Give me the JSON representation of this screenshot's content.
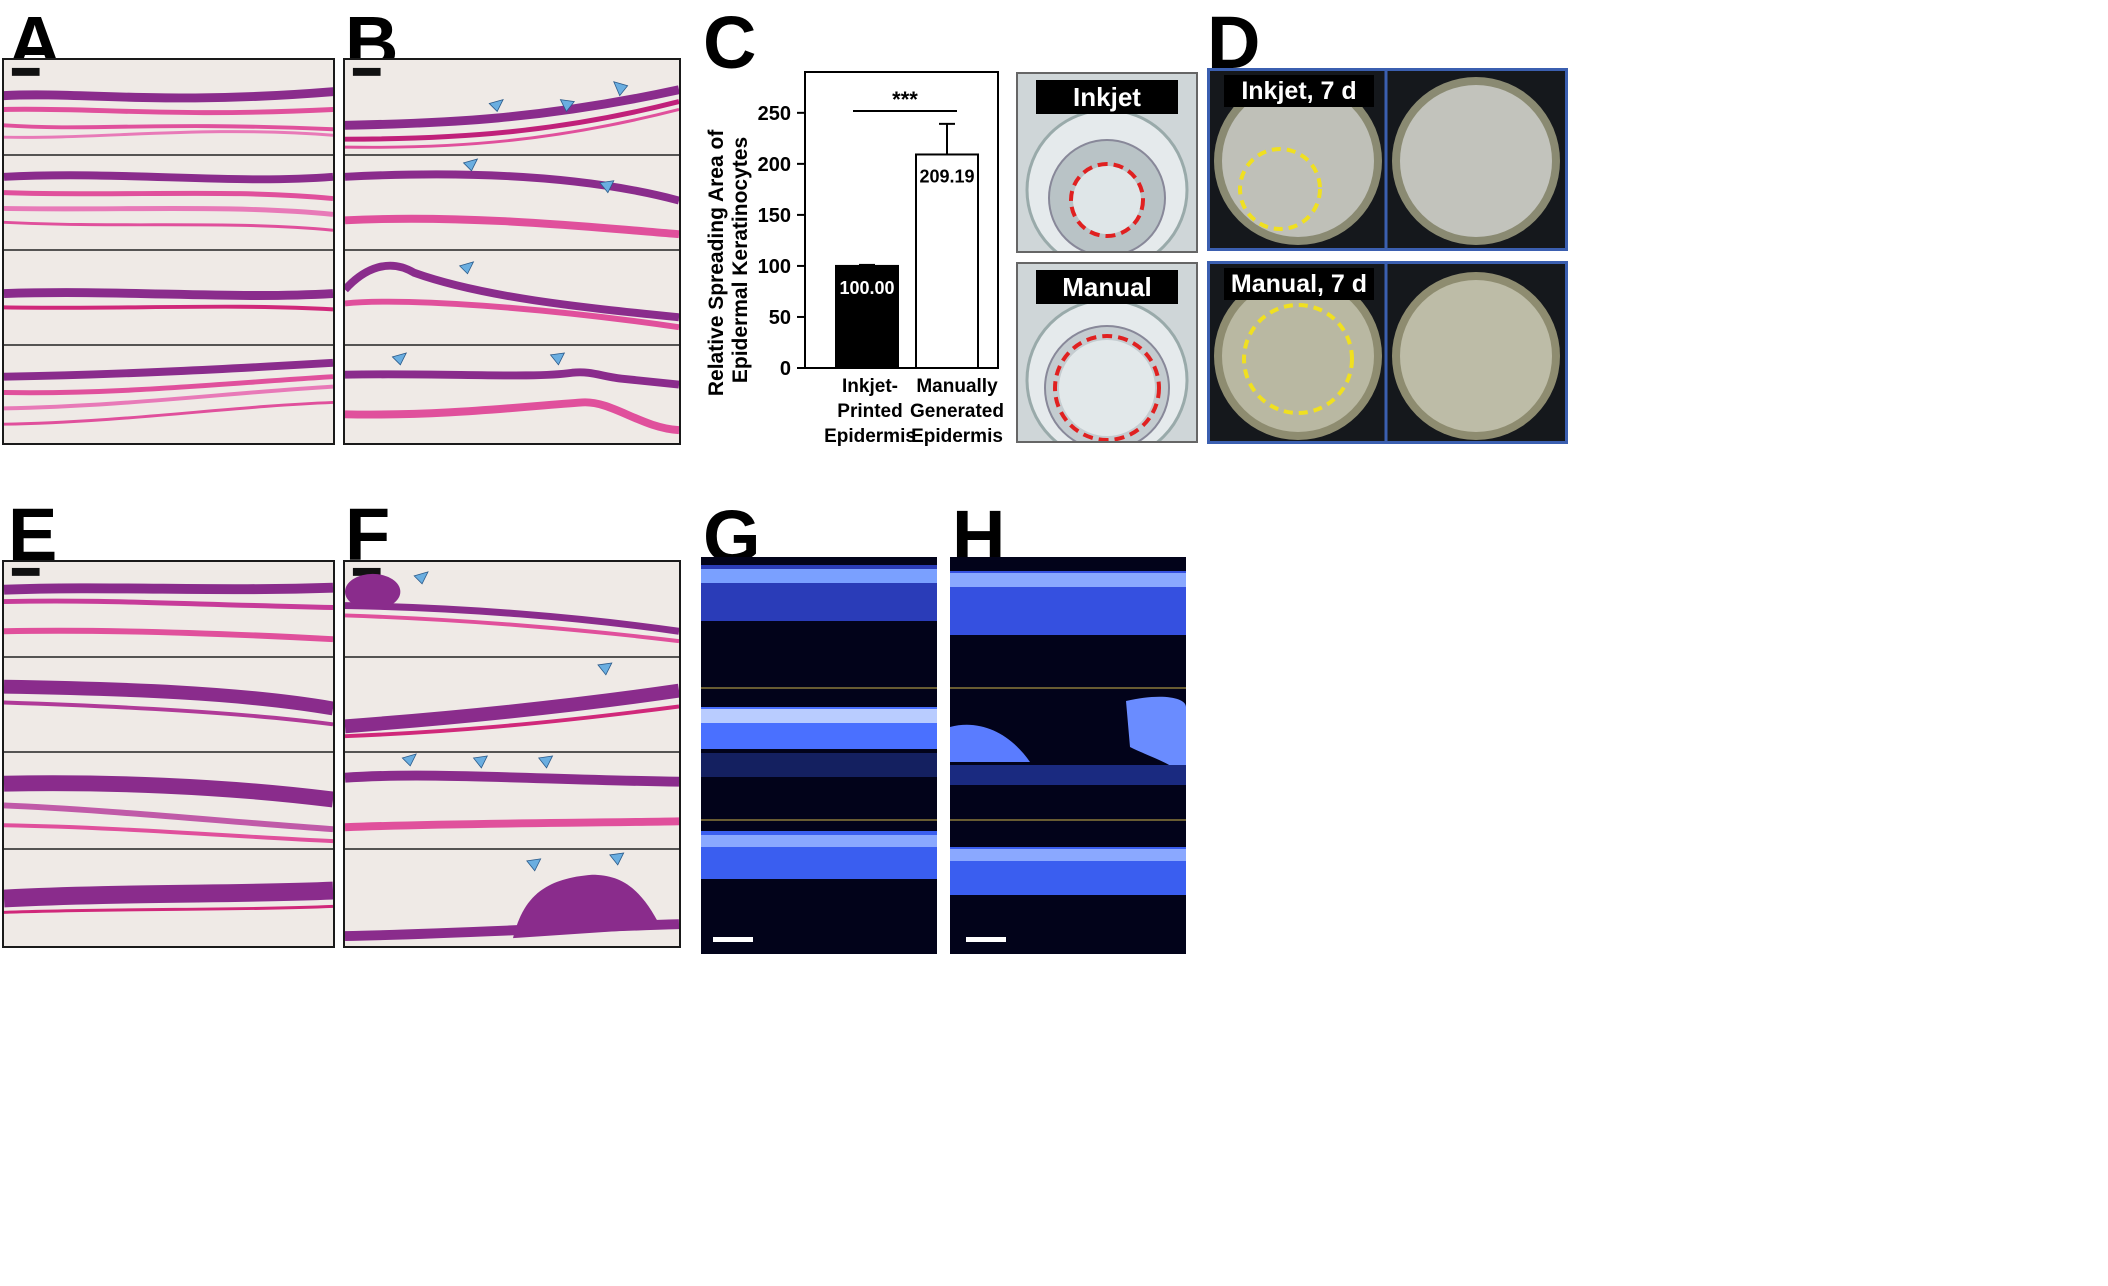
{
  "panels": {
    "A": "A",
    "B": "B",
    "C": "C",
    "D": "D",
    "E": "E",
    "F": "F",
    "G": "G",
    "H": "H"
  },
  "chart_data": {
    "type": "bar",
    "categories": [
      "Inkjet-Printed Epidermis",
      "Manually Generated Epidermis"
    ],
    "category_lines": [
      [
        "Inkjet-",
        "Printed",
        "Epidermis"
      ],
      [
        "Manually",
        "Generated",
        "Epidermis"
      ]
    ],
    "values": [
      100.0,
      209.19
    ],
    "value_labels": [
      "100.00",
      "209.19"
    ],
    "errors": [
      1,
      30
    ],
    "bar_colors": [
      "#000000",
      "#ffffff"
    ],
    "ylabel_lines": [
      "Relative Spreading Area of",
      "Epidermal Keratinocytes"
    ],
    "ylim": [
      0,
      250
    ],
    "yticks": [
      0,
      50,
      100,
      150,
      200,
      250
    ],
    "significance": "***"
  },
  "photos": {
    "inkjet_label": "Inkjet",
    "manual_label": "Manual",
    "d_inkjet_label": "Inkjet, 7 d",
    "d_manual_label": "Manual, 7 d"
  },
  "colors": {
    "he_pink": "#e0509c",
    "he_purple": "#8a2c8c",
    "arrowhead": "#6aaee0",
    "fluor_blue": "#4a70ff",
    "frame_blue": "#3b5fb0",
    "circle_red": "#e02020",
    "circle_yellow": "#f0e020"
  }
}
